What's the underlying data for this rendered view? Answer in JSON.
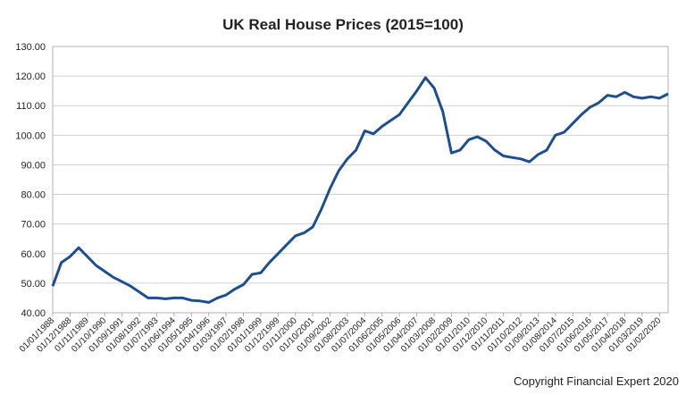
{
  "chart_data": {
    "type": "line",
    "title": "UK Real House Prices (2015=100)",
    "annotation": "Copyright Financial Expert 2020",
    "categories": [
      "01/01/1988",
      null,
      "01/12/1988",
      null,
      "01/11/1989",
      null,
      "01/10/1990",
      null,
      "01/09/1991",
      null,
      "01/08/1992",
      null,
      "01/07/1993",
      null,
      "01/06/1994",
      null,
      "01/05/1995",
      null,
      "01/04/1996",
      null,
      "01/03/1997",
      null,
      "01/02/1998",
      null,
      "01/01/1999",
      null,
      "01/12/1999",
      null,
      "01/11/2000",
      null,
      "01/10/2001",
      null,
      "01/09/2002",
      null,
      "01/08/2003",
      null,
      "01/07/2004",
      null,
      "01/06/2005",
      null,
      "01/05/2006",
      null,
      "01/04/2007",
      null,
      "01/03/2008",
      null,
      "01/02/2009",
      null,
      "01/01/2010",
      null,
      "01/12/2010",
      null,
      "01/11/2011",
      null,
      "01/10/2012",
      null,
      "01/09/2013",
      null,
      "01/08/2014",
      null,
      "01/07/2015",
      null,
      "01/06/2016",
      null,
      "01/05/2017",
      null,
      "01/04/2018",
      null,
      "01/03/2019",
      null,
      "01/02/2020",
      null
    ],
    "values": [
      49,
      57,
      59,
      62,
      59,
      56,
      54,
      52,
      50.5,
      49,
      47,
      45,
      45,
      44.7,
      45,
      45,
      44.2,
      44,
      43.5,
      45,
      46,
      48,
      49.5,
      53,
      53.5,
      57,
      60,
      63,
      66,
      67,
      69,
      75,
      82,
      88,
      92,
      95,
      101.5,
      100.5,
      103,
      105,
      107,
      111,
      115,
      119.5,
      116,
      108,
      94,
      95,
      98.5,
      99.5,
      98,
      95,
      93,
      92.5,
      92,
      91,
      93.5,
      95,
      100,
      101,
      104,
      107,
      109.5,
      111,
      113.5,
      113,
      114.5,
      113,
      112.5,
      113,
      112.5,
      114
    ],
    "color": "#1f4e8c",
    "ylim": [
      40,
      130
    ],
    "yticks": [
      {
        "value": 40,
        "label": "40.00"
      },
      {
        "value": 50,
        "label": "50.00"
      },
      {
        "value": 60,
        "label": "60.00"
      },
      {
        "value": 70,
        "label": "70.00"
      },
      {
        "value": 80,
        "label": "80.00"
      },
      {
        "value": 90,
        "label": "90.00"
      },
      {
        "value": 100,
        "label": "100.00"
      },
      {
        "value": 110,
        "label": "110.00"
      },
      {
        "value": 120,
        "label": "120.00"
      },
      {
        "value": 130,
        "label": "130.00"
      }
    ],
    "grid": true
  }
}
